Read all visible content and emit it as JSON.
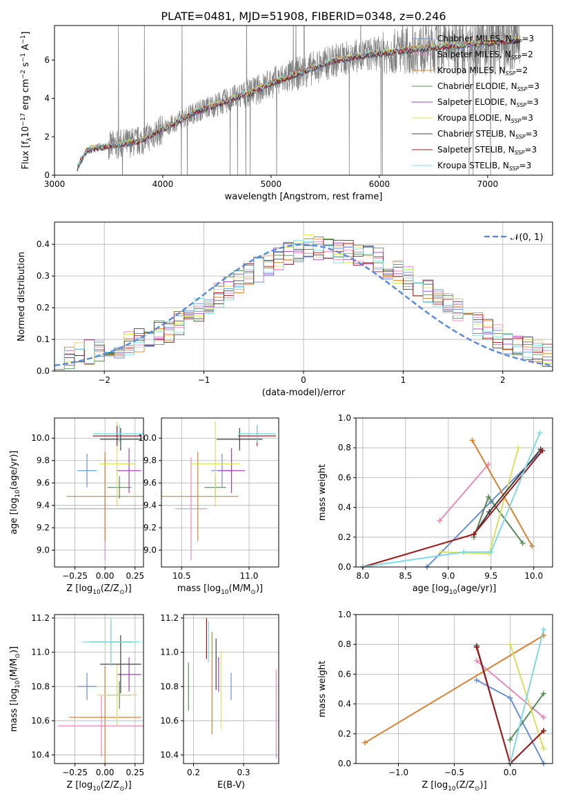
{
  "figure": {
    "title": "PLATE=0481, MJD=51908, FIBERID=0348, z=0.246"
  },
  "chart_data": [
    {
      "id": "spectrum",
      "type": "line",
      "xlabel": "wavelength [Angstrom, rest frame]",
      "ylabel": "Flux [f",
      "ylabel_sub": "λ",
      "ylabel_rest": "10",
      "ylabel_exp1": "−17",
      "ylabel_mid": " erg cm",
      "ylabel_exp2": "−2",
      "ylabel_mid2": " s",
      "ylabel_exp3": "−1",
      "ylabel_end": " A",
      "ylabel_exp4": "−1",
      "ylabel_close": "]",
      "xlim": [
        3000,
        7600
      ],
      "ylim": [
        0,
        7.8
      ],
      "xticks": [
        "3000",
        "4000",
        "5000",
        "6000",
        "7000"
      ],
      "xtick_values": [
        3000,
        4000,
        5000,
        6000,
        7000
      ],
      "yticks": [
        "0",
        "2",
        "4",
        "6"
      ],
      "ytick_values": [
        0,
        2,
        4,
        6
      ],
      "grid": false,
      "legend_position": "top-right",
      "data_color": "#808080",
      "series": [
        {
          "name": "Chabrier MILES, N",
          "sub": "SSP",
          "suffix": "=3",
          "color": "#6a8fd8"
        },
        {
          "name": "Salpeter MILES, N",
          "sub": "SSP",
          "suffix": "=2",
          "color": "#e68ab8"
        },
        {
          "name": "Kroupa MILES, N",
          "sub": "SSP",
          "suffix": "=2",
          "color": "#d98030"
        },
        {
          "name": "Chabrier ELODIE, N",
          "sub": "SSP",
          "suffix": "=3",
          "color": "#5a8a5a"
        },
        {
          "name": "Salpeter ELODIE, N",
          "sub": "SSP",
          "suffix": "=3",
          "color": "#9a40b0"
        },
        {
          "name": "Kroupa ELODIE, N",
          "sub": "SSP",
          "suffix": "=3",
          "color": "#d8e060"
        },
        {
          "name": "Chabrier STELIB, N",
          "sub": "SSP",
          "suffix": "=3",
          "color": "#404040"
        },
        {
          "name": "Salpeter STELIB, N",
          "sub": "SSP",
          "suffix": "=3",
          "color": "#a01818"
        },
        {
          "name": "Kroupa STELIB, N",
          "sub": "SSP",
          "suffix": "=3",
          "color": "#80d8e0"
        }
      ],
      "model_wavelength": [
        3200,
        3300,
        3400,
        3500,
        3600,
        3700,
        3800,
        3900,
        4000,
        4100,
        4200,
        4300,
        4400,
        4500,
        4600,
        4700,
        4800,
        4900,
        5000,
        5100,
        5200,
        5300,
        5400,
        5500,
        5600,
        5700,
        5800,
        5900,
        6000,
        6100,
        6200,
        6300,
        6400,
        6500,
        6600,
        6700,
        6800,
        6900,
        7000,
        7100,
        7200,
        7300
      ],
      "model_flux": [
        0.3,
        1.3,
        1.45,
        1.5,
        1.6,
        1.7,
        1.8,
        2.1,
        2.4,
        2.7,
        3.0,
        3.3,
        3.5,
        3.7,
        3.9,
        4.1,
        4.3,
        4.5,
        4.8,
        5.0,
        5.2,
        5.4,
        5.6,
        5.8,
        6.0,
        6.1,
        6.2,
        6.3,
        6.35,
        6.4,
        6.5,
        6.55,
        6.6,
        6.65,
        6.7,
        6.75,
        6.8,
        6.85,
        6.9,
        6.95,
        7.0,
        7.05
      ]
    },
    {
      "id": "residuals",
      "type": "step",
      "xlabel": "(data-model)/error",
      "ylabel": "Normed distribution",
      "xlim": [
        -2.5,
        2.5
      ],
      "ylim": [
        0,
        0.47
      ],
      "xticks": [
        "−2",
        "−1",
        "0",
        "1",
        "2"
      ],
      "xtick_values": [
        -2,
        -1,
        0,
        1,
        2
      ],
      "yticks": [
        "0.0",
        "0.1",
        "0.2",
        "0.3",
        "0.4"
      ],
      "ytick_values": [
        0,
        0.1,
        0.2,
        0.3,
        0.4
      ],
      "grid": true,
      "legend_position": "top-right",
      "legend_label": "𝒩(0, 1)",
      "gauss_color": "#5b8bd8",
      "bin_width": 0.1,
      "bin_start": -2.5,
      "base_heights": [
        0.035,
        0.045,
        0.05,
        0.06,
        0.07,
        0.075,
        0.08,
        0.09,
        0.1,
        0.11,
        0.12,
        0.13,
        0.15,
        0.17,
        0.19,
        0.21,
        0.24,
        0.26,
        0.28,
        0.3,
        0.32,
        0.34,
        0.35,
        0.37,
        0.38,
        0.39,
        0.39,
        0.385,
        0.38,
        0.375,
        0.37,
        0.36,
        0.35,
        0.33,
        0.31,
        0.29,
        0.27,
        0.25,
        0.23,
        0.21,
        0.19,
        0.17,
        0.15,
        0.13,
        0.11,
        0.09,
        0.08,
        0.07,
        0.06,
        0.05
      ]
    },
    {
      "id": "age-vs-Z",
      "type": "errorbar",
      "xlabel": "Z [log",
      "xlabel_sub": "10",
      "xlabel_rest": "(Z/Z",
      "xlabel_sun": "⊙",
      "xlabel_close": ")]",
      "ylabel": "age  [log",
      "ylabel_sub": "10",
      "ylabel_rest": "(age/yr)]",
      "xlim": [
        -0.42,
        0.32
      ],
      "ylim": [
        8.85,
        10.18
      ],
      "xticks": [
        "−0.25",
        "0.00",
        "0.25"
      ],
      "xtick_values": [
        -0.25,
        0,
        0.25
      ],
      "yticks": [
        "9.0",
        "9.2",
        "9.4",
        "9.6",
        "9.8",
        "10.0"
      ],
      "ytick_values": [
        9.0,
        9.2,
        9.4,
        9.6,
        9.8,
        10.0
      ],
      "grid": true,
      "points": [
        {
          "x": -0.15,
          "xerr": 0.08,
          "y": 9.71,
          "yerr": 0.15,
          "color": "#6a8fd8"
        },
        {
          "x": 0.0,
          "xerr": 0.4,
          "y": 9.37,
          "yerr": 0.46,
          "color": "#e68ab8"
        },
        {
          "x": 0.0,
          "xerr": 0.32,
          "y": 9.48,
          "yerr": 0.4,
          "color": "#d98030"
        },
        {
          "x": 0.12,
          "xerr": 0.1,
          "y": 9.56,
          "yerr": 0.1,
          "color": "#5a8a5a"
        },
        {
          "x": 0.2,
          "xerr": 0.1,
          "y": 9.71,
          "yerr": 0.2,
          "color": "#9a40b0"
        },
        {
          "x": 0.1,
          "xerr": 0.15,
          "y": 9.77,
          "yerr": 0.38,
          "color": "#d8e060"
        },
        {
          "x": 0.13,
          "xerr": 0.17,
          "y": 9.99,
          "yerr": 0.1,
          "color": "#404040"
        },
        {
          "x": 0.1,
          "xerr": 0.2,
          "y": 10.02,
          "yerr": 0.09,
          "color": "#a01818"
        },
        {
          "x": 0.12,
          "xerr": 0.22,
          "y": 10.04,
          "yerr": 0.08,
          "color": "#80d8e0"
        }
      ]
    },
    {
      "id": "age-vs-mass",
      "type": "errorbar",
      "xlabel": "mass [log",
      "xlabel_sub": "10",
      "xlabel_rest": "(M/M",
      "xlabel_sun": "⊙",
      "xlabel_close": ")]",
      "xlim": [
        10.35,
        11.22
      ],
      "ylim": [
        8.85,
        10.18
      ],
      "xticks": [
        "10.5",
        "11.0"
      ],
      "xtick_values": [
        10.5,
        11.0
      ],
      "yticks": [
        "9.0",
        "9.2",
        "9.4",
        "9.6",
        "9.8",
        "10.0"
      ],
      "ytick_values": [
        9.0,
        9.2,
        9.4,
        9.6,
        9.8,
        10.0
      ],
      "grid": true,
      "points": [
        {
          "x": 10.8,
          "xerr": 0.08,
          "y": 9.71,
          "yerr": 0.15,
          "color": "#6a8fd8"
        },
        {
          "x": 10.57,
          "xerr": 0.12,
          "y": 9.37,
          "yerr": 0.46,
          "color": "#e68ab8"
        },
        {
          "x": 10.62,
          "xerr": 0.3,
          "y": 9.48,
          "yerr": 0.4,
          "color": "#d98030"
        },
        {
          "x": 10.75,
          "xerr": 0.08,
          "y": 9.56,
          "yerr": 0.1,
          "color": "#5a8a5a"
        },
        {
          "x": 10.87,
          "xerr": 0.1,
          "y": 9.71,
          "yerr": 0.2,
          "color": "#9a40b0"
        },
        {
          "x": 10.75,
          "xerr": 0.18,
          "y": 9.77,
          "yerr": 0.38,
          "color": "#d8e060"
        },
        {
          "x": 10.93,
          "xerr": 0.17,
          "y": 9.99,
          "yerr": 0.1,
          "color": "#404040"
        },
        {
          "x": 11.06,
          "xerr": 0.14,
          "y": 10.02,
          "yerr": 0.09,
          "color": "#a01818"
        },
        {
          "x": 11.06,
          "xerr": 0.14,
          "y": 10.04,
          "yerr": 0.08,
          "color": "#80d8e0"
        }
      ]
    },
    {
      "id": "weight-vs-age",
      "type": "line",
      "xlabel": "age  [log",
      "xlabel_sub": "10",
      "xlabel_rest": "(age/yr)]",
      "ylabel": "mass weight",
      "xlim": [
        7.92,
        10.22
      ],
      "ylim": [
        0,
        1
      ],
      "xticks": [
        "8.0",
        "8.5",
        "9.0",
        "9.5",
        "10.0"
      ],
      "xtick_values": [
        8.0,
        8.5,
        9.0,
        9.5,
        10.0
      ],
      "yticks": [
        "0.0",
        "0.2",
        "0.4",
        "0.6",
        "0.8",
        "1.0"
      ],
      "ytick_values": [
        0,
        0.2,
        0.4,
        0.6,
        0.8,
        1.0
      ],
      "grid": true,
      "series": [
        {
          "color": "#6a8fd8",
          "x": [
            8.75,
            9.5,
            10.1
          ],
          "y": [
            0.0,
            0.44,
            0.78
          ]
        },
        {
          "color": "#e68ab8",
          "x": [
            8.9,
            9.47
          ],
          "y": [
            0.31,
            0.69
          ]
        },
        {
          "color": "#d98030",
          "x": [
            9.28,
            9.98
          ],
          "y": [
            0.85,
            0.14
          ]
        },
        {
          "color": "#5a8a5a",
          "x": [
            9.3,
            9.47,
            9.87
          ],
          "y": [
            0.2,
            0.47,
            0.16
          ]
        },
        {
          "color": "#d8e060",
          "x": [
            8.92,
            9.48,
            9.82
          ],
          "y": [
            0.1,
            0.09,
            0.8
          ]
        },
        {
          "color": "#404040",
          "x": [
            9.3,
            9.48,
            10.08
          ],
          "y": [
            0.22,
            0.37,
            0.79
          ]
        },
        {
          "color": "#a01818",
          "x": [
            8.0,
            9.3,
            10.1
          ],
          "y": [
            0.0,
            0.22,
            0.78
          ]
        },
        {
          "color": "#80d8e0",
          "x": [
            8.0,
            9.18,
            9.5,
            10.07
          ],
          "y": [
            0.0,
            0.1,
            0.1,
            0.9
          ]
        }
      ]
    },
    {
      "id": "mass-vs-Z",
      "type": "errorbar",
      "xlabel": "Z [log",
      "xlabel_sub": "10",
      "xlabel_rest": "(Z/Z",
      "xlabel_sun": "⊙",
      "xlabel_close": ")]",
      "ylabel": "mass [log",
      "ylabel_sub": "10",
      "ylabel_rest": "(M/M",
      "ylabel_sun": "⊙",
      "ylabel_close": ")]",
      "xlim": [
        -0.42,
        0.32
      ],
      "ylim": [
        10.35,
        11.22
      ],
      "xticks": [
        "−0.25",
        "0.00",
        "0.25"
      ],
      "xtick_values": [
        -0.25,
        0,
        0.25
      ],
      "yticks": [
        "10.4",
        "10.6",
        "10.8",
        "11.0",
        "11.2"
      ],
      "ytick_values": [
        10.4,
        10.6,
        10.8,
        11.0,
        11.2
      ],
      "grid": true,
      "points": [
        {
          "x": -0.15,
          "xerr": 0.08,
          "y": 10.8,
          "yerr": 0.08,
          "color": "#6a8fd8"
        },
        {
          "x": -0.03,
          "xerr": 0.36,
          "y": 10.57,
          "yerr": 0.18,
          "color": "#e68ab8"
        },
        {
          "x": 0.0,
          "xerr": 0.3,
          "y": 10.62,
          "yerr": 0.3,
          "color": "#d98030"
        },
        {
          "x": 0.12,
          "xerr": 0.1,
          "y": 10.75,
          "yerr": 0.08,
          "color": "#5a8a5a"
        },
        {
          "x": 0.2,
          "xerr": 0.1,
          "y": 10.87,
          "yerr": 0.1,
          "color": "#9a40b0"
        },
        {
          "x": 0.1,
          "xerr": 0.17,
          "y": 10.75,
          "yerr": 0.18,
          "color": "#d8e060"
        },
        {
          "x": 0.13,
          "xerr": 0.17,
          "y": 10.93,
          "yerr": 0.17,
          "color": "#404040"
        },
        {
          "x": 0.05,
          "xerr": 0.18,
          "y": 11.06,
          "yerr": 0.12,
          "color": "#a01818"
        },
        {
          "x": 0.05,
          "xerr": 0.24,
          "y": 11.06,
          "yerr": 0.14,
          "color": "#80d8e0"
        }
      ]
    },
    {
      "id": "mass-vs-ebv",
      "type": "errorbar",
      "xlabel": "E(B-V)",
      "xlim": [
        0.18,
        0.37
      ],
      "ylim": [
        10.35,
        11.22
      ],
      "xticks": [
        "0.2",
        "0.3"
      ],
      "xtick_values": [
        0.2,
        0.3
      ],
      "yticks": [
        "10.4",
        "10.6",
        "10.8",
        "11.0",
        "11.2"
      ],
      "ytick_values": [
        10.4,
        10.6,
        10.8,
        11.0,
        11.2
      ],
      "grid": true,
      "points": [
        {
          "x": 0.275,
          "xerr": 0,
          "y": 10.8,
          "yerr": 0.08,
          "color": "#6a8fd8"
        },
        {
          "x": 0.365,
          "xerr": 0,
          "y": 10.64,
          "yerr": 0.26,
          "color": "#e68ab8"
        },
        {
          "x": 0.237,
          "xerr": 0,
          "y": 10.82,
          "yerr": 0.3,
          "color": "#d98030"
        },
        {
          "x": 0.19,
          "xerr": 0,
          "y": 10.8,
          "yerr": 0.14,
          "color": "#5a8a5a"
        },
        {
          "x": 0.25,
          "xerr": 0,
          "y": 10.87,
          "yerr": 0.1,
          "color": "#9a40b0"
        },
        {
          "x": 0.255,
          "xerr": 0,
          "y": 10.78,
          "yerr": 0.23,
          "color": "#d8e060"
        },
        {
          "x": 0.245,
          "xerr": 0,
          "y": 10.93,
          "yerr": 0.15,
          "color": "#404040"
        },
        {
          "x": 0.226,
          "xerr": 0,
          "y": 11.08,
          "yerr": 0.12,
          "color": "#a01818"
        },
        {
          "x": 0.23,
          "xerr": 0,
          "y": 11.06,
          "yerr": 0.12,
          "color": "#80d8e0"
        }
      ]
    },
    {
      "id": "weight-vs-Z",
      "type": "line",
      "xlabel": "Z [log",
      "xlabel_sub": "10",
      "xlabel_rest": "(Z/Z",
      "xlabel_sun": "⊙",
      "xlabel_close": ")]",
      "ylabel": "mass weight",
      "xlim": [
        -1.38,
        0.38
      ],
      "ylim": [
        0,
        1
      ],
      "xticks": [
        "−1.0",
        "−0.5",
        "0.0"
      ],
      "xtick_values": [
        -1.0,
        -0.5,
        0.0
      ],
      "yticks": [
        "0.0",
        "0.2",
        "0.4",
        "0.6",
        "0.8",
        "1.0"
      ],
      "ytick_values": [
        0,
        0.2,
        0.4,
        0.6,
        0.8,
        1.0
      ],
      "grid": true,
      "series": [
        {
          "color": "#6a8fd8",
          "x": [
            -0.3,
            0.0,
            0.3
          ],
          "y": [
            0.56,
            0.44,
            0.0
          ]
        },
        {
          "color": "#e68ab8",
          "x": [
            -0.3,
            0.3
          ],
          "y": [
            0.69,
            0.31
          ]
        },
        {
          "color": "#d98030",
          "x": [
            -1.3,
            0.3
          ],
          "y": [
            0.14,
            0.86
          ]
        },
        {
          "color": "#5a8a5a",
          "x": [
            0.0,
            0.3
          ],
          "y": [
            0.16,
            0.47
          ]
        },
        {
          "color": "#d8e060",
          "x": [
            0.0,
            0.3
          ],
          "y": [
            0.8,
            0.1
          ]
        },
        {
          "color": "#404040",
          "x": [
            -0.3,
            0.0,
            0.3
          ],
          "y": [
            0.79,
            0.0,
            0.22
          ]
        },
        {
          "color": "#a01818",
          "x": [
            -0.3,
            0.0,
            0.3
          ],
          "y": [
            0.78,
            0.0,
            0.22
          ]
        },
        {
          "color": "#80d8e0",
          "x": [
            0.0,
            0.3
          ],
          "y": [
            0.0,
            0.9
          ]
        }
      ]
    }
  ]
}
